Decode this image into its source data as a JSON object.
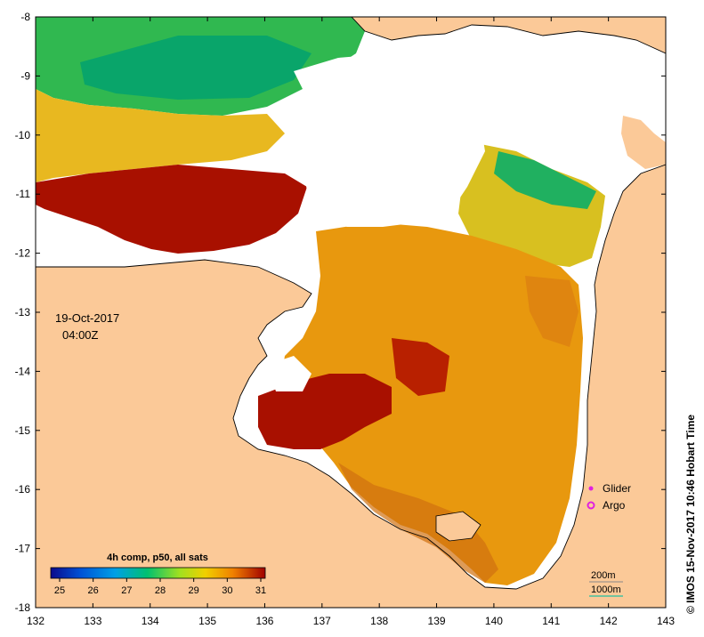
{
  "map": {
    "date_label": "19-Oct-2017",
    "time_label": "04:00Z",
    "colorbar": {
      "title": "4h comp, p50, all sats",
      "ticks": [
        "25",
        "26",
        "27",
        "28",
        "29",
        "30",
        "31"
      ],
      "colors": [
        "#0a0a8c",
        "#0052d6",
        "#00a0e6",
        "#00c070",
        "#a0e020",
        "#f0d000",
        "#f08000",
        "#a00000"
      ]
    },
    "x_axis": {
      "ticks": [
        "132",
        "133",
        "134",
        "135",
        "136",
        "137",
        "138",
        "139",
        "140",
        "141",
        "142",
        "143"
      ]
    },
    "y_axis": {
      "ticks": [
        "-8",
        "-9",
        "-10",
        "-11",
        "-12",
        "-13",
        "-14",
        "-15",
        "-16",
        "-17",
        "-18"
      ]
    },
    "legend": {
      "glider": "Glider",
      "argo": "Argo",
      "glider_color": "#e020e0",
      "argo_color": "#e020e0"
    },
    "contours": {
      "c200": "200m",
      "c1000": "1000m",
      "c1000_color": "#20c0a0"
    },
    "side_label": "© IMOS 15-Nov-2017 10:46 Hobart Time",
    "land_color": "#fbc998",
    "sea_colors": {
      "hot": "#a81000",
      "warm": "#e89a10",
      "mid": "#f0b020",
      "cool": "#00b060",
      "green": "#70d030"
    }
  }
}
